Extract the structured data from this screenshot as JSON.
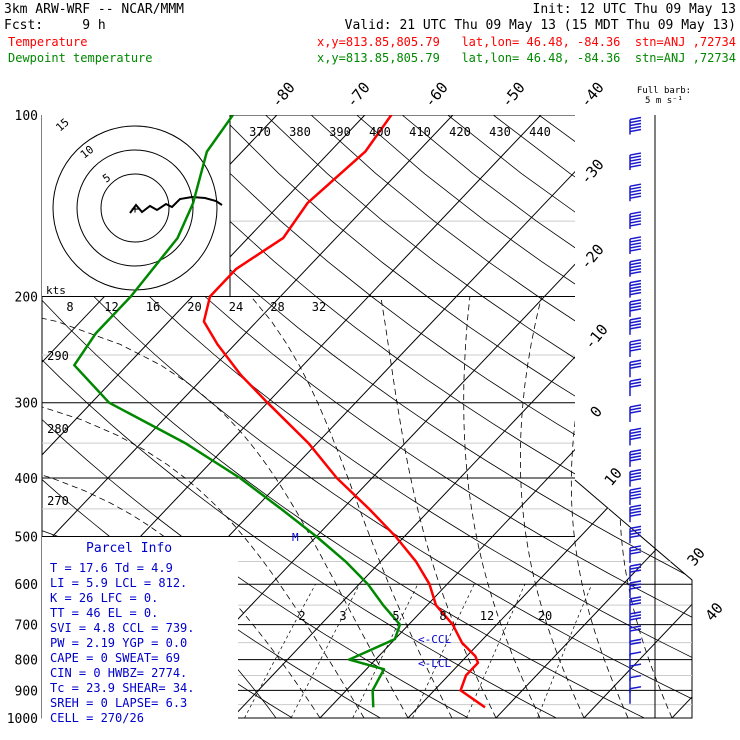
{
  "header": {
    "model": "3km ARW-WRF -- NCAR/MMM",
    "init": "Init: 12 UTC Thu 09 May 13",
    "fcst": "Fcst:     9 h",
    "valid": "Valid: 21 UTC Thu 09 May 13 (15 MDT Thu 09 May 13)",
    "temp_label": "Temperature",
    "temp_loc": "x,y=813.85,805.79   lat,lon= 46.48, -84.36  stn=ANJ ,72734",
    "dew_label": "Dewpoint temperature",
    "dew_loc": "x,y=813.85,805.79   lat,lon= 46.48, -84.36  stn=ANJ ,72734"
  },
  "colors": {
    "temperature": "#ff0000",
    "dewpoint": "#008800",
    "info": "#0000cc",
    "barb": "#1a1acc"
  },
  "parcel_info": {
    "title": "Parcel Info",
    "rows": [
      "T  =   17.6 Td =   4.9",
      "LI =    5.9 LCL = 812.",
      "K  =     26 LFC =   0.",
      "TT =     46 EL  =   0.",
      "SVI =   4.8 CCL = 739.",
      "PW =   2.19 YGP =  0.0",
      "CAPE =    0 SWEAT=  69",
      "CIN =     0 HWBZ= 2774.",
      "Tc =   23.9 SHEAR=  34.",
      "SREH =    0 LAPSE=  6.3",
      "CELL = 270/26"
    ]
  },
  "barb_key": {
    "line1": "Full barb:",
    "line2": "5 m s⁻¹"
  },
  "hodograph": {
    "rings": [
      "5",
      "10",
      "15"
    ],
    "unit": "kts",
    "plus": "+"
  },
  "level_markers": {
    "m": "M",
    "ccl": "<-CCL",
    "lcl": "<-LCL"
  },
  "chart_data": {
    "type": "line",
    "title": "",
    "y_axis": {
      "scale": "log",
      "ylim": [
        1000,
        100
      ],
      "ticks": [
        100,
        200,
        300,
        400,
        500,
        600,
        700,
        800,
        900,
        1000
      ]
    },
    "x_axis": {
      "skewed": true,
      "isotherm_labels_top": [
        "-80",
        "-70",
        "-60",
        "-50",
        "-40"
      ],
      "isotherm_labels_right": [
        "-30",
        "-20",
        "-10",
        "0",
        "10",
        "30",
        "40"
      ]
    },
    "theta_labels": [
      "370",
      "380",
      "390",
      "400",
      "410",
      "420",
      "430",
      "440"
    ],
    "mixing_ratio_labels_top": [
      "8",
      "12",
      "16",
      "20",
      "24",
      "28",
      "32"
    ],
    "mixing_ratio_labels_bottom": [
      "2",
      "3",
      "5",
      "8",
      "12",
      "20"
    ],
    "left_theta_labels": [
      "290",
      "280",
      "270"
    ],
    "series": [
      {
        "name": "Temperature",
        "points": [
          [
            100,
            -57
          ],
          [
            115,
            -56
          ],
          [
            140,
            -57
          ],
          [
            160,
            -56
          ],
          [
            180,
            -58
          ],
          [
            200,
            -58
          ],
          [
            220,
            -56
          ],
          [
            240,
            -52
          ],
          [
            270,
            -46
          ],
          [
            300,
            -40
          ],
          [
            350,
            -31
          ],
          [
            400,
            -24
          ],
          [
            450,
            -17
          ],
          [
            500,
            -11
          ],
          [
            550,
            -6
          ],
          [
            600,
            -2
          ],
          [
            650,
            1
          ],
          [
            700,
            5
          ],
          [
            750,
            8
          ],
          [
            790,
            11
          ],
          [
            810,
            12
          ],
          [
            850,
            12
          ],
          [
            900,
            13
          ],
          [
            960,
            17.6
          ]
        ]
      },
      {
        "name": "Dewpoint temperature",
        "points": [
          [
            100,
            -75
          ],
          [
            115,
            -74
          ],
          [
            140,
            -70
          ],
          [
            160,
            -68
          ],
          [
            200,
            -67
          ],
          [
            230,
            -67
          ],
          [
            260,
            -66
          ],
          [
            300,
            -58
          ],
          [
            350,
            -45
          ],
          [
            400,
            -35
          ],
          [
            450,
            -27
          ],
          [
            500,
            -20
          ],
          [
            550,
            -14
          ],
          [
            600,
            -9
          ],
          [
            650,
            -5
          ],
          [
            700,
            -1
          ],
          [
            740,
            0
          ],
          [
            780,
            -2
          ],
          [
            800,
            -3
          ],
          [
            830,
            2
          ],
          [
            900,
            3
          ],
          [
            960,
            4.9
          ]
        ]
      }
    ],
    "wind_barbs": [
      {
        "p": 100,
        "speed_ms": 25
      },
      {
        "p": 115,
        "speed_ms": 25
      },
      {
        "p": 130,
        "speed_ms": 25
      },
      {
        "p": 145,
        "speed_ms": 25
      },
      {
        "p": 160,
        "speed_ms": 25
      },
      {
        "p": 175,
        "speed_ms": 25
      },
      {
        "p": 190,
        "speed_ms": 25
      },
      {
        "p": 205,
        "speed_ms": 20
      },
      {
        "p": 220,
        "speed_ms": 20
      },
      {
        "p": 240,
        "speed_ms": 20
      },
      {
        "p": 260,
        "speed_ms": 15
      },
      {
        "p": 280,
        "speed_ms": 15
      },
      {
        "p": 310,
        "speed_ms": 15
      },
      {
        "p": 340,
        "speed_ms": 20
      },
      {
        "p": 370,
        "speed_ms": 20
      },
      {
        "p": 400,
        "speed_ms": 20
      },
      {
        "p": 430,
        "speed_ms": 20
      },
      {
        "p": 460,
        "speed_ms": 20
      },
      {
        "p": 500,
        "speed_ms": 20
      },
      {
        "p": 540,
        "speed_ms": 15
      },
      {
        "p": 580,
        "speed_ms": 15
      },
      {
        "p": 620,
        "speed_ms": 15
      },
      {
        "p": 660,
        "speed_ms": 15
      },
      {
        "p": 700,
        "speed_ms": 15
      },
      {
        "p": 740,
        "speed_ms": 10
      },
      {
        "p": 780,
        "speed_ms": 10
      },
      {
        "p": 820,
        "speed_ms": 5
      },
      {
        "p": 860,
        "speed_ms": 5
      },
      {
        "p": 900,
        "speed_ms": 5
      },
      {
        "p": 940,
        "speed_ms": 5
      }
    ]
  }
}
